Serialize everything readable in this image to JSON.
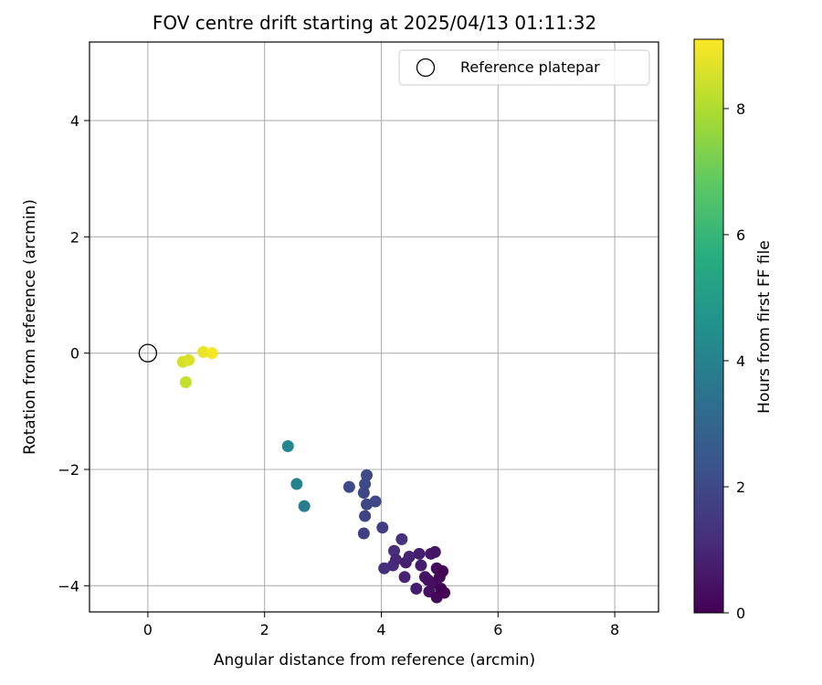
{
  "chart_data": {
    "type": "scatter",
    "title": "FOV centre drift starting at 2025/04/13 01:11:32",
    "xlabel": "Angular distance from reference (arcmin)",
    "ylabel": "Rotation from reference (arcmin)",
    "xlim": [
      -1.0,
      8.75
    ],
    "ylim": [
      -4.45,
      5.35
    ],
    "xticks": [
      0,
      2,
      4,
      6,
      8
    ],
    "yticks": [
      -4,
      -2,
      0,
      2,
      4
    ],
    "grid": true,
    "legend": {
      "position": "top-right",
      "label": "Reference platepar"
    },
    "reference_point": {
      "x": 0,
      "y": 0
    },
    "colorbar": {
      "label": "Hours from first FF file",
      "colormap": "viridis",
      "range": [
        0,
        9.1
      ],
      "ticks": [
        0,
        2,
        4,
        6,
        8
      ]
    },
    "points": [
      {
        "x": 0.6,
        "y": -0.15,
        "t": 8.5
      },
      {
        "x": 0.7,
        "y": -0.12,
        "t": 8.6
      },
      {
        "x": 0.95,
        "y": 0.02,
        "t": 8.8
      },
      {
        "x": 1.1,
        "y": 0.0,
        "t": 9.0
      },
      {
        "x": 0.65,
        "y": -0.5,
        "t": 8.3
      },
      {
        "x": 2.4,
        "y": -1.6,
        "t": 4.2
      },
      {
        "x": 2.55,
        "y": -2.25,
        "t": 4.0
      },
      {
        "x": 2.68,
        "y": -2.63,
        "t": 3.8
      },
      {
        "x": 3.45,
        "y": -2.3,
        "t": 2.0
      },
      {
        "x": 3.75,
        "y": -2.1,
        "t": 2.1
      },
      {
        "x": 3.72,
        "y": -2.25,
        "t": 2.0
      },
      {
        "x": 3.7,
        "y": -2.4,
        "t": 1.9
      },
      {
        "x": 3.9,
        "y": -2.55,
        "t": 2.0
      },
      {
        "x": 3.75,
        "y": -2.6,
        "t": 1.9
      },
      {
        "x": 3.72,
        "y": -2.8,
        "t": 1.8
      },
      {
        "x": 3.7,
        "y": -3.1,
        "t": 1.7
      },
      {
        "x": 4.02,
        "y": -3.0,
        "t": 1.6
      },
      {
        "x": 4.05,
        "y": -3.7,
        "t": 1.2
      },
      {
        "x": 4.2,
        "y": -3.65,
        "t": 1.1
      },
      {
        "x": 4.22,
        "y": -3.4,
        "t": 1.2
      },
      {
        "x": 4.25,
        "y": -3.55,
        "t": 1.0
      },
      {
        "x": 4.35,
        "y": -3.2,
        "t": 1.3
      },
      {
        "x": 4.4,
        "y": -3.85,
        "t": 0.9
      },
      {
        "x": 4.42,
        "y": -3.6,
        "t": 0.8
      },
      {
        "x": 4.48,
        "y": -3.5,
        "t": 0.9
      },
      {
        "x": 4.6,
        "y": -4.05,
        "t": 0.7
      },
      {
        "x": 4.65,
        "y": -3.45,
        "t": 0.8
      },
      {
        "x": 4.68,
        "y": -3.65,
        "t": 0.7
      },
      {
        "x": 4.75,
        "y": -3.85,
        "t": 0.5
      },
      {
        "x": 4.85,
        "y": -3.45,
        "t": 0.6
      },
      {
        "x": 4.82,
        "y": -4.1,
        "t": 0.4
      },
      {
        "x": 4.9,
        "y": -3.95,
        "t": 0.3
      },
      {
        "x": 4.92,
        "y": -3.42,
        "t": 0.5
      },
      {
        "x": 4.95,
        "y": -3.7,
        "t": 0.3
      },
      {
        "x": 4.95,
        "y": -4.2,
        "t": 0.2
      },
      {
        "x": 5.0,
        "y": -3.85,
        "t": 0.2
      },
      {
        "x": 5.02,
        "y": -4.05,
        "t": 0.1
      },
      {
        "x": 5.05,
        "y": -3.75,
        "t": 0.1
      },
      {
        "x": 5.08,
        "y": -4.12,
        "t": 0.0
      },
      {
        "x": 4.8,
        "y": -3.9,
        "t": 0.4
      }
    ]
  }
}
